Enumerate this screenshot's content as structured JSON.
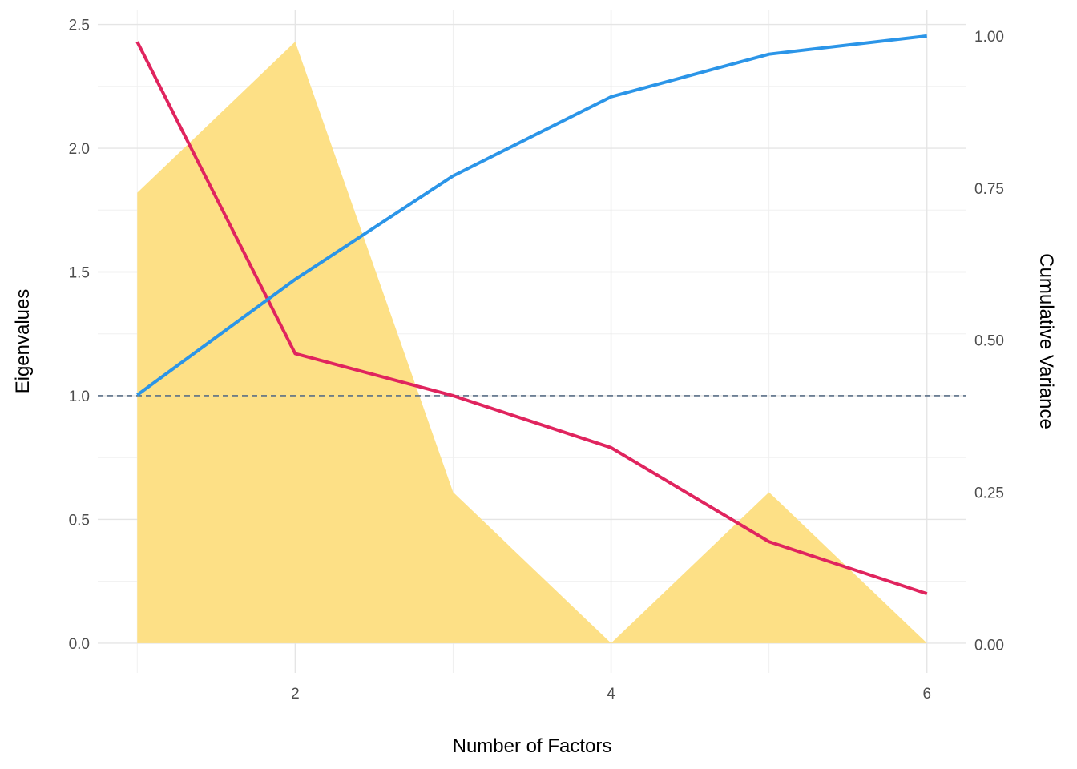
{
  "chart_data": {
    "type": "line",
    "xlabel": "Number of Factors",
    "ylabel": "Eigenvalues",
    "y2label": "Cumulative Variance",
    "x": [
      1,
      2,
      3,
      4,
      5,
      6
    ],
    "xticks": [
      2,
      4,
      6
    ],
    "xlim": [
      0.75,
      6.25
    ],
    "ylim": [
      -0.12,
      2.56
    ],
    "yticks": [
      0.0,
      0.5,
      1.0,
      1.5,
      2.0,
      2.5
    ],
    "y2lim": [
      -0.0467,
      1.0433
    ],
    "y2ticks": [
      0.0,
      0.25,
      0.5,
      0.75,
      1.0
    ],
    "y2tick_labels": [
      "0.00",
      "0.25",
      "0.50",
      "0.75",
      "1.00"
    ],
    "grid": true,
    "reference_line": {
      "y": 1.0,
      "style": "dashed",
      "color": "#5a6f87"
    },
    "series": [
      {
        "type": "area",
        "axis": "y",
        "color": "#fde086",
        "values": [
          1.82,
          2.43,
          0.61,
          0.0,
          0.61,
          0.0
        ]
      },
      {
        "type": "line",
        "axis": "y",
        "color": "#e0245e",
        "values": [
          2.43,
          1.17,
          1.0,
          0.79,
          0.41,
          0.2
        ]
      },
      {
        "type": "line",
        "axis": "y2",
        "color": "#2b95e8",
        "values": [
          0.41,
          0.6,
          0.77,
          0.9,
          0.97,
          1.0
        ]
      }
    ]
  }
}
